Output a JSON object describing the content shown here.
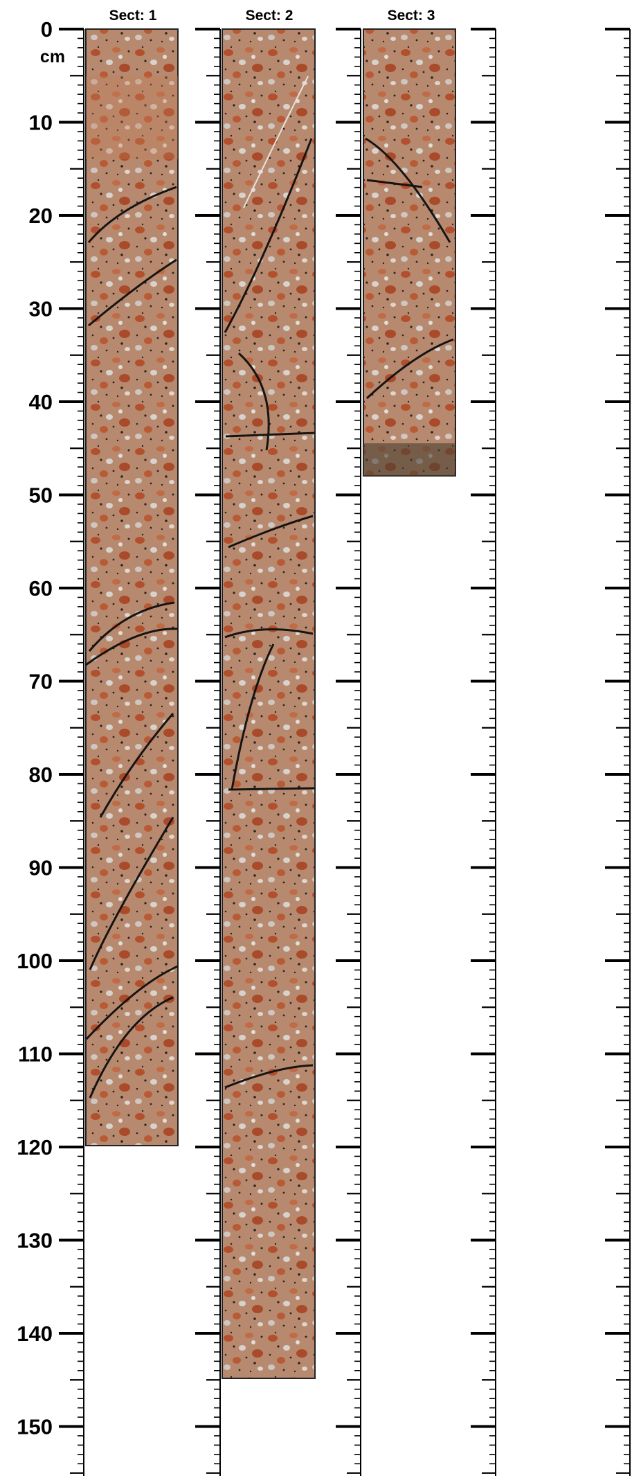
{
  "unit_label": "cm",
  "depth_labels": [
    "0",
    "10",
    "20",
    "30",
    "40",
    "50",
    "60",
    "70",
    "80",
    "90",
    "100",
    "110",
    "120",
    "130",
    "140",
    "150"
  ],
  "sections": [
    {
      "label": "Sect: 1",
      "length_cm": 120.5
    },
    {
      "label": "Sect: 2",
      "length_cm": 145.5
    },
    {
      "label": "Sect: 3",
      "length_cm": 48
    }
  ],
  "colors": {
    "rock_base": "#b78a70",
    "feldspar": "#b2502e",
    "quartz": "#d8d2cd",
    "mafic": "#2a2420",
    "fracture": "#161412"
  }
}
